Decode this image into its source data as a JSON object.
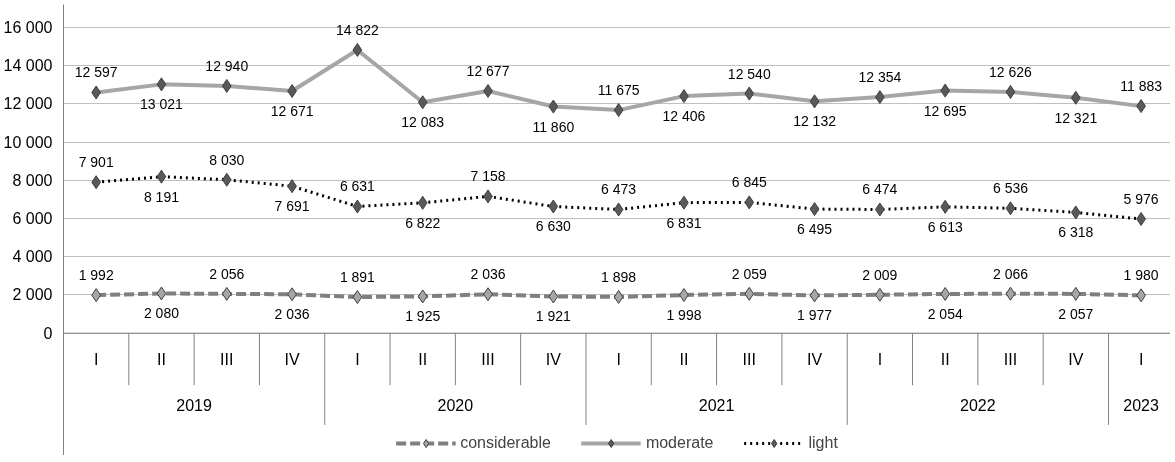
{
  "chart_data": {
    "type": "line",
    "categories": [
      "I",
      "II",
      "III",
      "IV",
      "I",
      "II",
      "III",
      "IV",
      "I",
      "II",
      "III",
      "IV",
      "I",
      "II",
      "III",
      "IV",
      "I"
    ],
    "annotations": [
      "2019",
      "2020",
      "2021",
      "2022",
      "2023"
    ],
    "series": [
      {
        "name": "considerable",
        "color": "#7f7f7f",
        "line_style": "dashed",
        "values": [
          1992,
          2080,
          2056,
          2036,
          1891,
          1925,
          2036,
          1921,
          1898,
          1998,
          2059,
          1977,
          2009,
          2054,
          2066,
          2057,
          1980
        ],
        "value_labels": [
          "1 992",
          "2 080",
          "2 056",
          "2 036",
          "1 891",
          "1 925",
          "2 036",
          "1 921",
          "1 898",
          "1 998",
          "2 059",
          "1 977",
          "2 009",
          "2 054",
          "2 066",
          "2 057",
          "1 980"
        ]
      },
      {
        "name": "moderate",
        "color": "#a6a6a6",
        "line_style": "solid",
        "values": [
          12597,
          13021,
          12940,
          12671,
          14822,
          12083,
          12677,
          11860,
          11675,
          12406,
          12540,
          12132,
          12354,
          12695,
          12626,
          12321,
          11883
        ],
        "value_labels": [
          "12 597",
          "13 021",
          "12 940",
          "12 671",
          "14 822",
          "12 083",
          "12 677",
          "11 860",
          "11 675",
          "12 406",
          "12 540",
          "12 132",
          "12 354",
          "12 695",
          "12 626",
          "12 321",
          "11 883"
        ]
      },
      {
        "name": "light",
        "color": "#000000",
        "line_style": "dotted",
        "values": [
          7901,
          8191,
          8030,
          7691,
          6631,
          6822,
          7158,
          6630,
          6473,
          6831,
          6845,
          6495,
          6474,
          6613,
          6536,
          6318,
          5976
        ],
        "value_labels": [
          "7 901",
          "8 191",
          "8 030",
          "7 691",
          "6 631",
          "6 822",
          "7 158",
          "6 630",
          "6 473",
          "6 831",
          "6 845",
          "6 495",
          "6 474",
          "6 613",
          "6 536",
          "6 318",
          "5 976"
        ]
      }
    ],
    "ylim": [
      0,
      16000
    ],
    "yticks": [
      0,
      {
        "value": 2000,
        "label": "2 000"
      },
      {
        "value": 4000,
        "label": "4 000"
      },
      {
        "value": 6000,
        "label": "6 000"
      },
      {
        "value": 8000,
        "label": "8 000"
      },
      {
        "value": 10000,
        "label": "10 000"
      },
      {
        "value": 12000,
        "label": "12 000"
      },
      {
        "value": 14000,
        "label": "14 000"
      },
      {
        "value": 16000,
        "label": "16 000"
      }
    ],
    "grid": "y",
    "legend": "bottom",
    "marker": "diamond"
  }
}
